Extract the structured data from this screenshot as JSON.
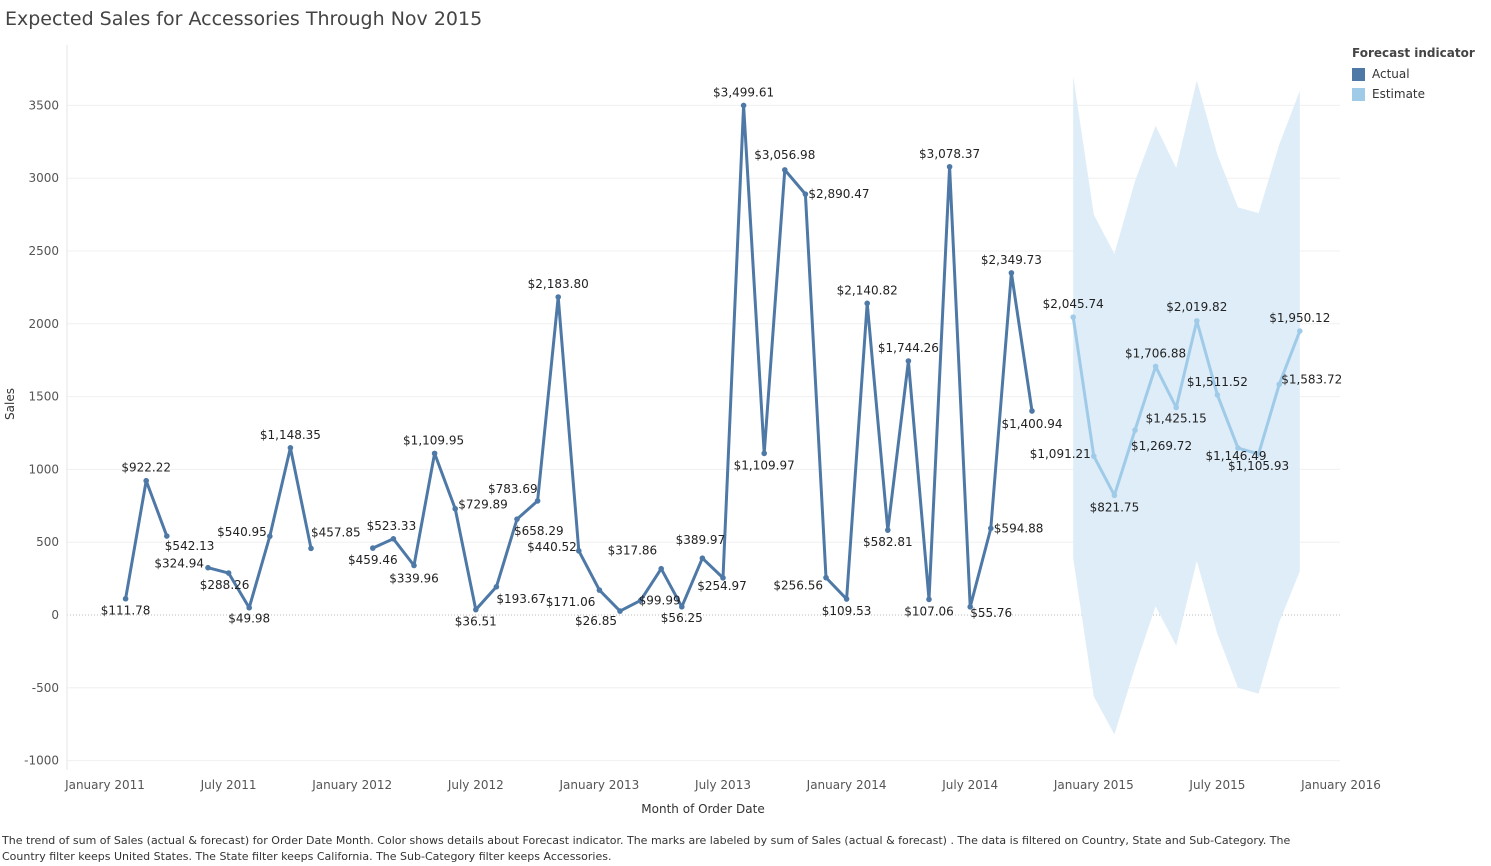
{
  "title": "Expected Sales for Accessories Through Nov 2015",
  "legend": {
    "title": "Forecast indicator",
    "items": [
      {
        "label": "Actual",
        "color": "#4e79a7"
      },
      {
        "label": "Estimate",
        "color": "#a0cbe8"
      }
    ]
  },
  "caption": "The trend of sum of Sales (actual & forecast)  for Order Date Month.  Color shows details about Forecast indicator.  The marks are labeled by sum of Sales (actual & forecast) . The data is filtered on Country, State and Sub-Category. The Country filter keeps United States. The State filter keeps California. The Sub-Category filter keeps Accessories.",
  "chart_data": {
    "type": "line",
    "xlabel": "Month of Order Date",
    "ylabel": "Sales",
    "ylim": [
      -1000,
      3500
    ],
    "yticks": [
      -1000,
      -500,
      0,
      500,
      1000,
      1500,
      2000,
      2500,
      3000,
      3500
    ],
    "xticks": [
      {
        "date": "2011-01",
        "label": "January 2011"
      },
      {
        "date": "2011-07",
        "label": "July 2011"
      },
      {
        "date": "2012-01",
        "label": "January 2012"
      },
      {
        "date": "2012-07",
        "label": "July 2012"
      },
      {
        "date": "2013-01",
        "label": "January 2013"
      },
      {
        "date": "2013-07",
        "label": "July 2013"
      },
      {
        "date": "2014-01",
        "label": "January 2014"
      },
      {
        "date": "2014-07",
        "label": "July 2014"
      },
      {
        "date": "2015-01",
        "label": "January 2015"
      },
      {
        "date": "2015-07",
        "label": "July 2015"
      },
      {
        "date": "2016-01",
        "label": "January 2016"
      }
    ],
    "grid": true,
    "legend_position": "top-right",
    "series": [
      {
        "name": "Actual",
        "color": "#4e79a7",
        "segments": [
          [
            {
              "date": "2011-02",
              "value": 111.78,
              "label": "$111.78"
            },
            {
              "date": "2011-03",
              "value": 922.22,
              "label": "$922.22"
            },
            {
              "date": "2011-04",
              "value": 542.13,
              "label": "$542.13"
            }
          ],
          [
            {
              "date": "2011-06",
              "value": 324.94,
              "label": "$324.94"
            },
            {
              "date": "2011-07",
              "value": 288.26,
              "label": "$288.26"
            },
            {
              "date": "2011-08",
              "value": 49.98,
              "label": "$49.98"
            },
            {
              "date": "2011-09",
              "value": 540.95,
              "label": "$540.95"
            },
            {
              "date": "2011-10",
              "value": 1148.35,
              "label": "$1,148.35"
            },
            {
              "date": "2011-11",
              "value": 457.85,
              "label": "$457.85"
            }
          ],
          [
            {
              "date": "2012-02",
              "value": 459.46,
              "label": "$459.46"
            },
            {
              "date": "2012-03",
              "value": 523.33,
              "label": "$523.33"
            },
            {
              "date": "2012-04",
              "value": 339.96,
              "label": "$339.96"
            },
            {
              "date": "2012-05",
              "value": 1109.95,
              "label": "$1,109.95"
            },
            {
              "date": "2012-06",
              "value": 729.89,
              "label": "$729.89"
            },
            {
              "date": "2012-07",
              "value": 36.51,
              "label": "$36.51"
            },
            {
              "date": "2012-08",
              "value": 193.67,
              "label": "$193.67"
            },
            {
              "date": "2012-09",
              "value": 658.29,
              "label": "$658.29"
            },
            {
              "date": "2012-10",
              "value": 783.69,
              "label": "$783.69"
            },
            {
              "date": "2012-11",
              "value": 2183.8,
              "label": "$2,183.80"
            },
            {
              "date": "2012-12",
              "value": 440.52,
              "label": "$440.52"
            },
            {
              "date": "2013-01",
              "value": 171.06,
              "label": "$171.06"
            },
            {
              "date": "2013-02",
              "value": 26.85,
              "label": "$26.85"
            },
            {
              "date": "2013-03",
              "value": 99.99,
              "label": "$99.99"
            },
            {
              "date": "2013-04",
              "value": 317.86,
              "label": "$317.86"
            },
            {
              "date": "2013-05",
              "value": 56.25,
              "label": "$56.25"
            },
            {
              "date": "2013-06",
              "value": 389.97,
              "label": "$389.97"
            },
            {
              "date": "2013-07",
              "value": 254.97,
              "label": "$254.97"
            },
            {
              "date": "2013-08",
              "value": 3499.61,
              "label": "$3,499.61"
            },
            {
              "date": "2013-09",
              "value": 1109.97,
              "label": "$1,109.97"
            },
            {
              "date": "2013-10",
              "value": 3056.98,
              "label": "$3,056.98"
            },
            {
              "date": "2013-11",
              "value": 2890.47,
              "label": "$2,890.47"
            },
            {
              "date": "2013-12",
              "value": 256.56,
              "label": "$256.56"
            },
            {
              "date": "2014-01",
              "value": 109.53,
              "label": "$109.53"
            },
            {
              "date": "2014-02",
              "value": 2140.82,
              "label": "$2,140.82"
            },
            {
              "date": "2014-03",
              "value": 582.81,
              "label": "$582.81"
            },
            {
              "date": "2014-04",
              "value": 1744.26,
              "label": "$1,744.26"
            },
            {
              "date": "2014-05",
              "value": 107.06,
              "label": "$107.06"
            },
            {
              "date": "2014-06",
              "value": 3078.37,
              "label": "$3,078.37"
            },
            {
              "date": "2014-07",
              "value": 55.76,
              "label": "$55.76"
            },
            {
              "date": "2014-08",
              "value": 594.88,
              "label": "$594.88"
            },
            {
              "date": "2014-09",
              "value": 2349.73,
              "label": "$2,349.73"
            },
            {
              "date": "2014-10",
              "value": 1400.94,
              "label": "$1,400.94"
            }
          ]
        ]
      },
      {
        "name": "Estimate",
        "color": "#a0cbe8",
        "segments": [
          [
            {
              "date": "2014-12",
              "value": 2045.74,
              "label": "$2,045.74"
            },
            {
              "date": "2015-01",
              "value": 1091.21,
              "label": "$1,091.21"
            },
            {
              "date": "2015-02",
              "value": 821.75,
              "label": "$821.75"
            },
            {
              "date": "2015-03",
              "value": 1269.72,
              "label": "$1,269.72"
            },
            {
              "date": "2015-04",
              "value": 1706.88,
              "label": "$1,706.88"
            },
            {
              "date": "2015-05",
              "value": 1425.15,
              "label": "$1,425.15"
            },
            {
              "date": "2015-06",
              "value": 2019.82,
              "label": "$2,019.82"
            },
            {
              "date": "2015-07",
              "value": 1511.52,
              "label": "$1,511.52"
            },
            {
              "date": "2015-08",
              "value": 1146.49,
              "label": "$1,146.49"
            },
            {
              "date": "2015-09",
              "value": 1105.93,
              "label": "$1,105.93"
            },
            {
              "date": "2015-10",
              "value": 1583.72,
              "label": "$1,583.72"
            },
            {
              "date": "2015-11",
              "value": 1950.12,
              "label": "$1,950.12"
            }
          ]
        ],
        "prediction_band": {
          "color": "#deedf8",
          "dates": [
            "2014-12",
            "2015-01",
            "2015-02",
            "2015-03",
            "2015-04",
            "2015-05",
            "2015-06",
            "2015-07",
            "2015-08",
            "2015-09",
            "2015-10",
            "2015-11"
          ],
          "upper": [
            3700,
            2750,
            2480,
            2980,
            3360,
            3070,
            3670,
            3160,
            2800,
            2760,
            3230,
            3600
          ],
          "lower": [
            390,
            -560,
            -820,
            -360,
            60,
            -210,
            370,
            -130,
            -500,
            -540,
            -50,
            300
          ]
        }
      }
    ]
  }
}
